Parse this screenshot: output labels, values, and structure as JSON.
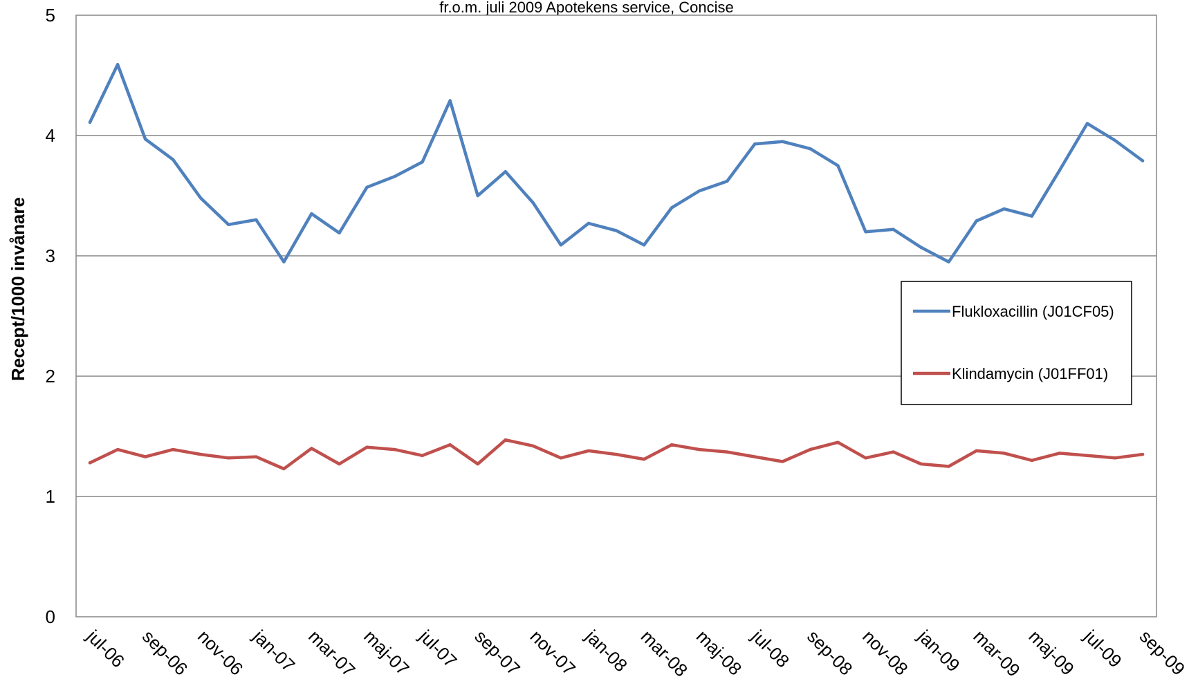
{
  "chart_data": {
    "type": "line",
    "title": "",
    "subtitle": "fr.o.m. juli 2009 Apotekens service, Concise",
    "xlabel": "",
    "ylabel": "Recept/1000 invånare",
    "ylim": [
      0,
      5
    ],
    "yticks": [
      0,
      1,
      2,
      3,
      4,
      5
    ],
    "grid": "horizontal",
    "legend_position": "right",
    "x": [
      "jul-06",
      "aug-06",
      "sep-06",
      "okt-06",
      "nov-06",
      "dec-06",
      "jan-07",
      "feb-07",
      "mar-07",
      "apr-07",
      "maj-07",
      "jun-07",
      "jul-07",
      "aug-07",
      "sep-07",
      "okt-07",
      "nov-07",
      "dec-07",
      "jan-08",
      "feb-08",
      "mar-08",
      "apr-08",
      "maj-08",
      "jun-08",
      "jul-08",
      "aug-08",
      "sep-08",
      "okt-08",
      "nov-08",
      "dec-08",
      "jan-09",
      "feb-09",
      "mar-09",
      "apr-09",
      "maj-09",
      "jun-09",
      "jul-09",
      "aug-09",
      "sep-09"
    ],
    "x_tick_labels": [
      "jul-06",
      "sep-06",
      "nov-06",
      "jan-07",
      "mar-07",
      "maj-07",
      "jul-07",
      "sep-07",
      "nov-07",
      "jan-08",
      "mar-08",
      "maj-08",
      "jul-08",
      "sep-08",
      "nov-08",
      "jan-09",
      "mar-09",
      "maj-09",
      "jul-09",
      "sep-09"
    ],
    "series": [
      {
        "name": "Flukloxacillin (J01CF05)",
        "color": "#4F81BD",
        "values": [
          4.11,
          4.59,
          3.97,
          3.8,
          3.48,
          3.26,
          3.3,
          2.95,
          3.35,
          3.19,
          3.57,
          3.66,
          3.78,
          4.29,
          3.5,
          3.7,
          3.44,
          3.09,
          3.27,
          3.21,
          3.09,
          3.4,
          3.54,
          3.62,
          3.93,
          3.95,
          3.89,
          3.75,
          3.2,
          3.22,
          3.07,
          2.95,
          3.29,
          3.39,
          3.33,
          3.71,
          4.1,
          3.96,
          3.79
        ]
      },
      {
        "name": "Klindamycin (J01FF01)",
        "color": "#C0504D",
        "values": [
          1.28,
          1.39,
          1.33,
          1.39,
          1.35,
          1.32,
          1.33,
          1.23,
          1.4,
          1.27,
          1.41,
          1.39,
          1.34,
          1.43,
          1.27,
          1.47,
          1.42,
          1.32,
          1.38,
          1.35,
          1.31,
          1.43,
          1.39,
          1.37,
          1.33,
          1.29,
          1.39,
          1.45,
          1.32,
          1.37,
          1.27,
          1.25,
          1.38,
          1.36,
          1.3,
          1.36,
          1.34,
          1.32,
          1.35
        ]
      }
    ]
  }
}
